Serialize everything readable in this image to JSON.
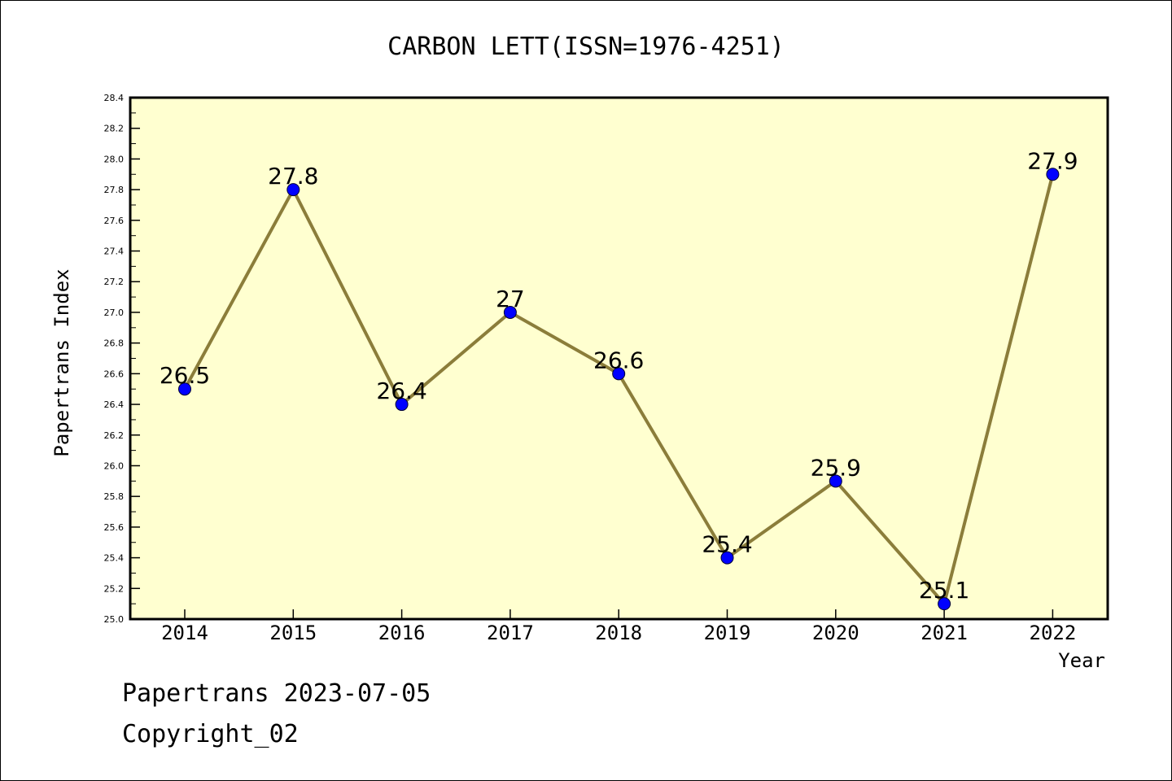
{
  "chart_data": {
    "type": "line",
    "title": "CARBON LETT(ISSN=1976-4251)",
    "xlabel": "Year",
    "ylabel": "Papertrans Index",
    "categories": [
      "2014",
      "2015",
      "2016",
      "2017",
      "2018",
      "2019",
      "2020",
      "2021",
      "2022"
    ],
    "series": [
      {
        "values": [
          26.5,
          27.8,
          26.4,
          27,
          26.6,
          25.4,
          25.9,
          25.1,
          27.9
        ]
      }
    ],
    "data_labels": [
      "26.5",
      "27.8",
      "26.4",
      "27",
      "26.6",
      "25.4",
      "25.9",
      "25.1",
      "27.9"
    ],
    "ylim": [
      25.0,
      28.4
    ],
    "yticks": [
      "25.0",
      "25.2",
      "25.4",
      "25.6",
      "25.8",
      "26.0",
      "26.2",
      "26.4",
      "26.6",
      "26.8",
      "27.0",
      "27.2",
      "27.4",
      "27.6",
      "27.8",
      "28.0",
      "28.2",
      "28.4"
    ],
    "grid": false,
    "colors": {
      "plot_background": "#ffffd0",
      "line": "#8b7d3a",
      "marker": "#0000ff"
    }
  },
  "footer": {
    "line1": "Papertrans 2023-07-05",
    "line2": "Copyright_02"
  }
}
